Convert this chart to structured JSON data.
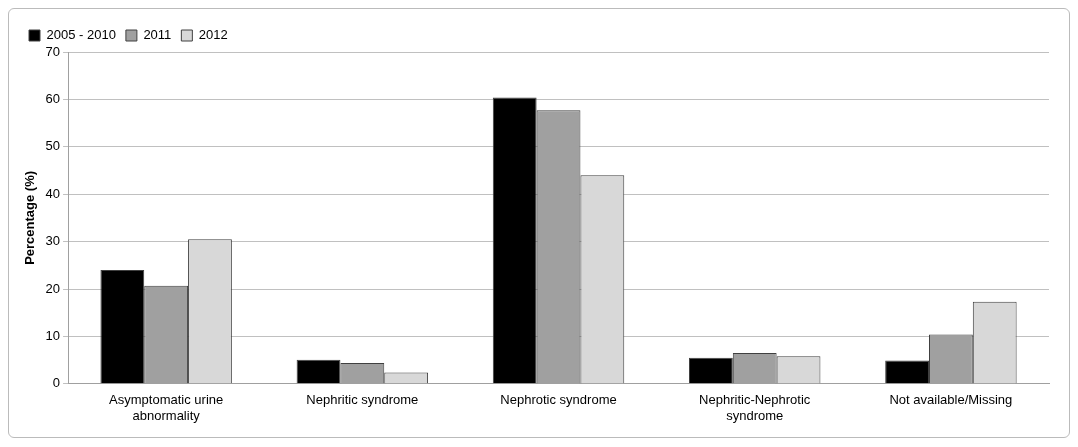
{
  "chart_data": {
    "type": "bar",
    "ylabel": "Percentage (%)",
    "categories": [
      "Asymptomatic urine abnormality",
      "Nephritic syndrome",
      "Nephrotic syndrome",
      "Nephritic-Nephrotic syndrome",
      "Not available/Missing"
    ],
    "series": [
      {
        "name": "2005 - 2010",
        "color": "#000000",
        "values": [
          24,
          5.1,
          60.4,
          5.5,
          4.9
        ]
      },
      {
        "name": "2011",
        "color": "#a0a0a0",
        "values": [
          20.7,
          4.4,
          57.7,
          6.5,
          10.4
        ]
      },
      {
        "name": "2012",
        "color": "#d8d8d8",
        "values": [
          30.5,
          2.4,
          44,
          5.8,
          17.3
        ]
      }
    ],
    "ylim": [
      0,
      70
    ],
    "yticks": [
      0,
      10,
      20,
      30,
      40,
      50,
      60,
      70
    ],
    "grid": "y",
    "legend": "top left"
  }
}
